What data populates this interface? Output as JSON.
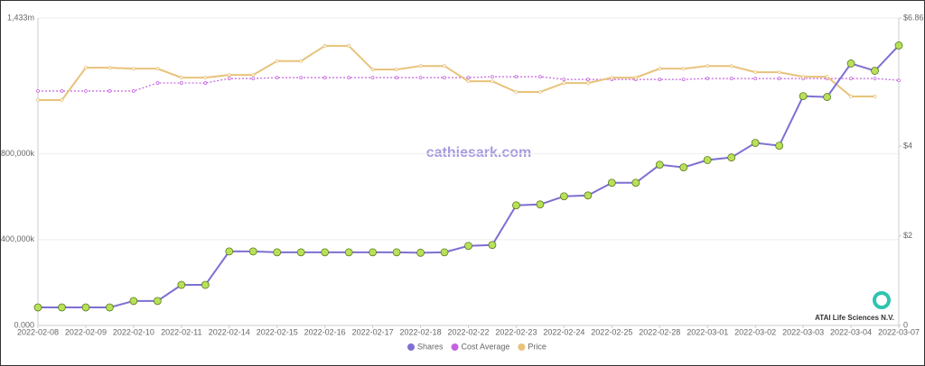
{
  "chart_data": {
    "type": "line",
    "watermark": "cathiesark.com",
    "company": "ATAI Life Sciences N.V.",
    "categories": [
      "2022-02-08",
      null,
      "2022-02-09",
      null,
      "2022-02-10",
      null,
      "2022-02-11",
      null,
      "2022-02-14",
      null,
      "2022-02-15",
      null,
      "2022-02-16",
      null,
      "2022-02-17",
      null,
      "2022-02-18",
      null,
      "2022-02-22",
      null,
      "2022-02-23",
      null,
      "2022-02-24",
      null,
      "2022-02-25",
      null,
      "2022-02-28",
      null,
      "2022-03-01",
      null,
      "2022-03-02",
      null,
      "2022-03-03",
      null,
      "2022-03-04",
      null,
      "2022-03-07"
    ],
    "ylim": [
      0,
      1433000000
    ],
    "yticks": [
      {
        "value": 0,
        "label": "0.000"
      },
      {
        "value": 400000000,
        "label": "400,000k"
      },
      {
        "value": 800000000,
        "label": "800,000k"
      },
      {
        "value": 1433000000,
        "label": "1,433m"
      }
    ],
    "y2lim": [
      0,
      6.86
    ],
    "y2ticks": [
      0,
      {
        "value": 2,
        "label": "$2"
      },
      {
        "value": 4,
        "label": "$4"
      },
      {
        "value": 6.86,
        "label": "$6.86"
      }
    ],
    "grid": true,
    "series": [
      {
        "name": "Shares",
        "color": "#7e6fd3",
        "marker_color": "#b8e05a",
        "values": [
          84000000,
          84000000,
          84000000,
          84000000,
          114000000,
          114000000,
          189000000,
          189000000,
          345000000,
          345000000,
          341000000,
          341000000,
          341000000,
          341000000,
          341000000,
          341000000,
          339000000,
          341000000,
          371000000,
          375000000,
          560000000,
          564000000,
          602000000,
          606000000,
          665000000,
          665000000,
          749000000,
          737000000,
          771000000,
          783000000,
          851000000,
          838000000,
          1069000000,
          1065000000,
          1221000000,
          1187000000,
          1305000000
        ]
      },
      {
        "name": "Cost Average",
        "color": "#c562e0",
        "axis": "y2",
        "values": [
          5.23,
          5.23,
          5.23,
          5.23,
          5.23,
          5.41,
          5.41,
          5.41,
          5.51,
          5.51,
          5.53,
          5.53,
          5.53,
          5.53,
          5.53,
          5.53,
          5.53,
          5.53,
          5.53,
          5.55,
          5.55,
          5.55,
          5.49,
          5.49,
          5.49,
          5.49,
          5.49,
          5.49,
          5.51,
          5.51,
          5.51,
          5.51,
          5.51,
          5.51,
          5.51,
          5.51,
          5.47
        ]
      },
      {
        "name": "Price",
        "color": "#e8c27a",
        "axis": "y2",
        "values": [
          5.03,
          5.03,
          5.75,
          5.75,
          5.73,
          5.73,
          5.53,
          5.53,
          5.59,
          5.59,
          5.9,
          5.9,
          6.24,
          6.24,
          5.71,
          5.71,
          5.79,
          5.79,
          5.45,
          5.45,
          5.21,
          5.21,
          5.41,
          5.41,
          5.53,
          5.53,
          5.73,
          5.73,
          5.79,
          5.79,
          5.65,
          5.65,
          5.55,
          5.55,
          5.11,
          5.11,
          null
        ]
      }
    ]
  }
}
